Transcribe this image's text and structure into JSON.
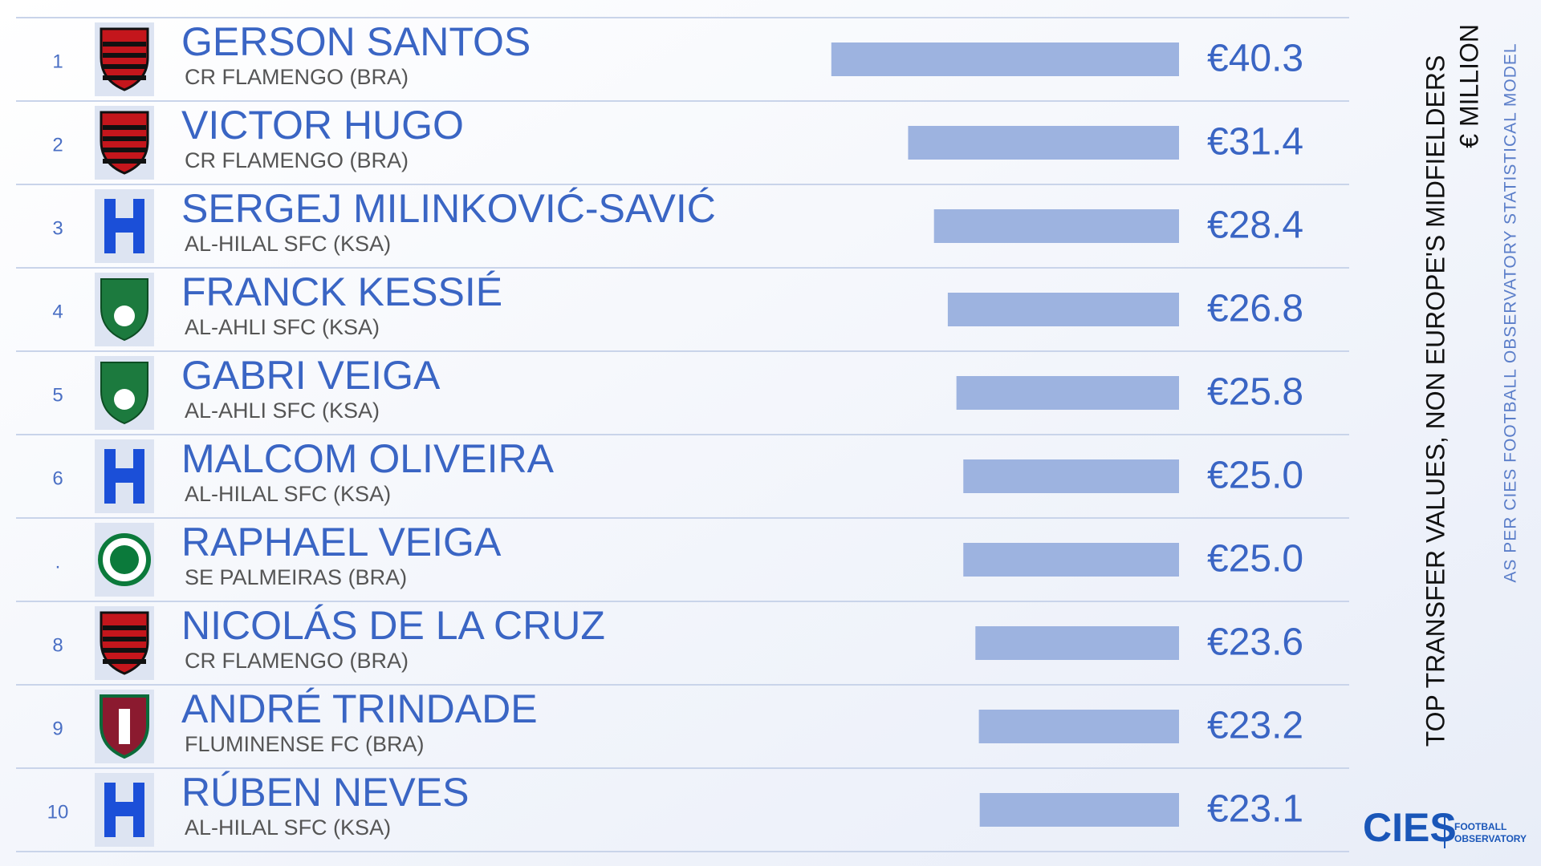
{
  "chart_data": {
    "type": "bar",
    "title": "TOP TRANSFER VALUES, NON EUROPE'S MIDFIELDERS",
    "subtitle": "€ MILLION",
    "source": "AS PER CIES FOOTBALL OBSERVATORY STATISTICAL MODEL",
    "ranks": [
      "1",
      "2",
      "3",
      "4",
      "5",
      "6",
      ".",
      "8",
      "9",
      "10"
    ],
    "categories": [
      "GERSON SANTOS",
      "VICTOR HUGO",
      "SERGEJ MILINKOVIĆ-SAVIĆ",
      "FRANCK KESSIÉ",
      "GABRI VEIGA",
      "MALCOM OLIVEIRA",
      "RAPHAEL VEIGA",
      "NICOLÁS DE LA CRUZ",
      "ANDRÉ TRINDADE",
      "RÚBEN NEVES"
    ],
    "clubs": [
      "CR FLAMENGO (BRA)",
      "CR FLAMENGO (BRA)",
      "AL-HILAL SFC (KSA)",
      "AL-AHLI SFC (KSA)",
      "AL-AHLI SFC (KSA)",
      "AL-HILAL SFC (KSA)",
      "SE PALMEIRAS (BRA)",
      "CR FLAMENGO (BRA)",
      "FLUMINENSE FC (BRA)",
      "AL-HILAL SFC (KSA)"
    ],
    "values": [
      40.3,
      31.4,
      28.4,
      26.8,
      25.8,
      25.0,
      25.0,
      23.6,
      23.2,
      23.1
    ],
    "value_labels": [
      "€40.3",
      "€31.4",
      "€28.4",
      "€26.8",
      "€25.8",
      "€25.0",
      "€25.0",
      "€23.6",
      "€23.2",
      "€23.1"
    ],
    "color": "#9db3e0"
  },
  "logo": {
    "name": "CIES",
    "line1": "FOOTBALL",
    "line2": "OBSERVATORY"
  }
}
